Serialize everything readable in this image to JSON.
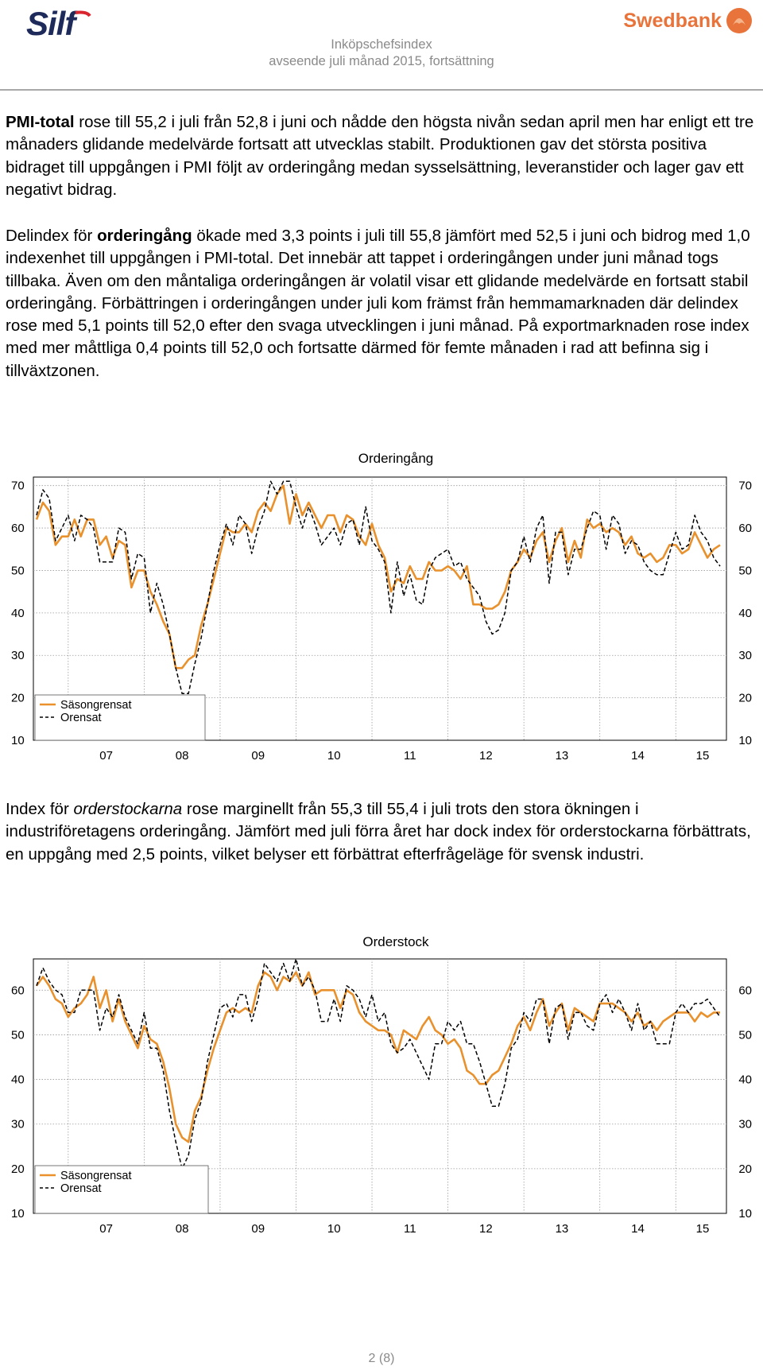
{
  "header": {
    "logo_left": "Silf",
    "logo_right": "Swedbank",
    "title_line1": "Inköpschefsindex",
    "title_line2": "avseende juli månad 2015, fortsättning"
  },
  "paragraphs": {
    "p1": {
      "bold": "PMI-total",
      "text": " rose till 55,2 i juli från 52,8 i juni och nådde den högsta nivån sedan april men har enligt ett tre månaders glidande medelvärde fortsatt att utvecklas stabilt. Produktionen gav det största positiva bidraget till uppgången i PMI följt av orderingång medan sysselsättning, leveranstider och lager gav ett negativt bidrag."
    },
    "p2": {
      "pre": "Delindex för ",
      "bold": "orderingång",
      "text": " ökade med 3,3 points i juli till 55,8 jämfört med 52,5 i juni och bidrog med 1,0 indexenhet till uppgången i PMI-total.  Det innebär att tappet i orderingången under juni månad togs tillbaka. Även om den måntaliga orderingången är volatil visar ett glidande medelvärde en fortsatt stabil orderingång. Förbättringen i orderingången under juli kom främst från hemmamarknaden där delindex rose med 5,1 points till 52,0 efter den svaga utvecklingen i juni månad. På exportmarknaden rose index med mer måttliga 0,4 points till 52,0 och fortsatte därmed för femte månaden i rad att befinna sig i tillväxtzonen."
    },
    "p3": {
      "pre": "Index för ",
      "italic": "orderstockarna",
      "text": " rose marginellt från 55,3 till 55,4 i juli trots den stora ökningen i industriföretagens orderingång. Jämfört med juli förra året har dock index för orderstockarna förbättrats, en uppgång med 2,5 points, vilket belyser ett förbättrat efterfrågeläge för svensk industri."
    }
  },
  "colors": {
    "seasonal": "#e8912d",
    "raw": "#000000",
    "grid": "#9a9a9a"
  },
  "chart_data": [
    {
      "type": "line",
      "title": "Orderingång",
      "x_tick_labels": [
        "07",
        "08",
        "09",
        "10",
        "11",
        "12",
        "13",
        "14",
        "15"
      ],
      "y_ticks": [
        10,
        20,
        30,
        40,
        50,
        60,
        70
      ],
      "ylim": [
        10,
        72
      ],
      "x_start": "2006-08",
      "grid": true,
      "legend_position": "bottom-left",
      "series": [
        {
          "name": "Säsongrensat",
          "style": "solid",
          "values": [
            62,
            66,
            64,
            56,
            58,
            58,
            62,
            58,
            62,
            62,
            56,
            58,
            53,
            57,
            56,
            46,
            50,
            50,
            45,
            42,
            38,
            35,
            27,
            27,
            29,
            30,
            37,
            42,
            48,
            54,
            60,
            59,
            59,
            61,
            59,
            64,
            66,
            64,
            68,
            70,
            61,
            68,
            63,
            66,
            63,
            60,
            63,
            63,
            59,
            63,
            62,
            58,
            56,
            61,
            56,
            53,
            45,
            48,
            47,
            51,
            48,
            48,
            52,
            50,
            50,
            51,
            50,
            48,
            51,
            42,
            42,
            41,
            41,
            42,
            45,
            50,
            52,
            55,
            53,
            57,
            59,
            52,
            57,
            60,
            52,
            57,
            53,
            62,
            60,
            61,
            59,
            60,
            59,
            56,
            58,
            54,
            53,
            54,
            52,
            53,
            56,
            56,
            54,
            55,
            59,
            56,
            53,
            55,
            56
          ],
          "color": "#e8912d"
        },
        {
          "name": "Orensat",
          "style": "dashed",
          "values": [
            63,
            69,
            67,
            57,
            60,
            63,
            57,
            63,
            62,
            60,
            52,
            52,
            52,
            60,
            59,
            48,
            54,
            53,
            40,
            47,
            42,
            35,
            27,
            21,
            21,
            28,
            34,
            42,
            50,
            56,
            61,
            56,
            63,
            61,
            54,
            60,
            64,
            71,
            68,
            71,
            71,
            65,
            60,
            65,
            61,
            56,
            58,
            60,
            56,
            61,
            62,
            56,
            65,
            57,
            55,
            52,
            40,
            52,
            44,
            49,
            43,
            42,
            50,
            53,
            54,
            55,
            51,
            52,
            48,
            46,
            44,
            38,
            35,
            36,
            40,
            50,
            52,
            58,
            52,
            60,
            63,
            47,
            59,
            59,
            49,
            55,
            55,
            60,
            64,
            63,
            55,
            63,
            61,
            54,
            57,
            56,
            52,
            50,
            49,
            49,
            54,
            59,
            55,
            56,
            63,
            59,
            57,
            53,
            51
          ],
          "color": "#000000"
        }
      ]
    },
    {
      "type": "line",
      "title": "Orderstock",
      "x_tick_labels": [
        "07",
        "08",
        "09",
        "10",
        "11",
        "12",
        "13",
        "14",
        "15"
      ],
      "y_ticks": [
        10,
        20,
        30,
        40,
        50,
        60
      ],
      "ylim": [
        10,
        67
      ],
      "x_start": "2006-08",
      "grid": true,
      "legend_position": "bottom-left",
      "series": [
        {
          "name": "Säsongrensat",
          "style": "solid",
          "values": [
            61,
            63,
            61,
            58,
            57,
            54,
            56,
            57,
            59,
            63,
            56,
            60,
            53,
            58,
            53,
            50,
            47,
            52,
            49,
            48,
            44,
            38,
            30,
            27,
            26,
            33,
            36,
            42,
            47,
            51,
            55,
            56,
            55,
            56,
            55,
            61,
            64,
            63,
            60,
            63,
            62,
            64,
            61,
            64,
            59,
            60,
            60,
            60,
            56,
            60,
            59,
            55,
            53,
            52,
            51,
            51,
            50,
            46,
            51,
            50,
            49,
            52,
            54,
            51,
            50,
            48,
            49,
            47,
            42,
            41,
            39,
            39,
            41,
            42,
            45,
            48,
            52,
            54,
            51,
            55,
            58,
            52,
            55,
            57,
            51,
            56,
            55,
            54,
            53,
            57,
            57,
            57,
            56,
            55,
            53,
            55,
            52,
            53,
            51,
            53,
            54,
            55,
            55,
            55,
            53,
            55,
            54,
            55,
            55
          ],
          "color": "#e8912d"
        },
        {
          "name": "Orensat",
          "style": "dashed",
          "values": [
            61,
            65,
            62,
            60,
            59,
            55,
            55,
            60,
            60,
            60,
            51,
            56,
            54,
            59,
            54,
            51,
            48,
            55,
            47,
            47,
            42,
            33,
            26,
            20,
            23,
            31,
            35,
            44,
            50,
            56,
            57,
            54,
            59,
            59,
            53,
            58,
            66,
            64,
            62,
            66,
            62,
            67,
            61,
            63,
            60,
            53,
            53,
            58,
            53,
            61,
            60,
            58,
            54,
            59,
            53,
            55,
            48,
            46,
            47,
            49,
            46,
            43,
            40,
            48,
            48,
            53,
            51,
            53,
            48,
            48,
            44,
            39,
            34,
            34,
            39,
            47,
            49,
            55,
            53,
            58,
            58,
            48,
            56,
            57,
            49,
            55,
            55,
            52,
            51,
            57,
            59,
            55,
            58,
            55,
            51,
            57,
            51,
            53,
            48,
            48,
            48,
            55,
            57,
            55,
            57,
            57,
            58,
            56,
            54
          ],
          "color": "#000000"
        }
      ]
    }
  ],
  "footer": {
    "page": "2 (8)"
  }
}
